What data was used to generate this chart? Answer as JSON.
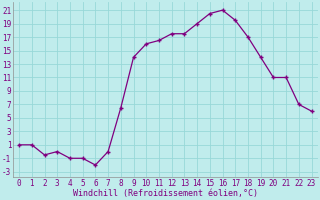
{
  "x": [
    0,
    1,
    2,
    3,
    4,
    5,
    6,
    7,
    8,
    9,
    10,
    11,
    12,
    13,
    14,
    15,
    16,
    17,
    18,
    19,
    20,
    21,
    22,
    23
  ],
  "y": [
    1,
    1,
    -0.5,
    0,
    -1,
    -1,
    -2,
    0,
    6.5,
    14,
    16,
    16.5,
    17.5,
    17.5,
    19,
    20.5,
    21,
    19.5,
    17,
    14,
    11,
    11,
    7,
    6
  ],
  "line_color": "#800080",
  "marker": "+",
  "bg_color": "#c0ecec",
  "grid_color": "#98d8d8",
  "xlabel": "Windchill (Refroidissement éolien,°C)",
  "yticks": [
    -3,
    -1,
    1,
    3,
    5,
    7,
    9,
    11,
    13,
    15,
    17,
    19,
    21
  ],
  "xticks": [
    0,
    1,
    2,
    3,
    4,
    5,
    6,
    7,
    8,
    9,
    10,
    11,
    12,
    13,
    14,
    15,
    16,
    17,
    18,
    19,
    20,
    21,
    22,
    23
  ],
  "ylim": [
    -3.8,
    22.2
  ],
  "xlim": [
    -0.5,
    23.5
  ],
  "font_color": "#800080",
  "tick_fontsize": 5.5,
  "label_fontsize": 6.0
}
